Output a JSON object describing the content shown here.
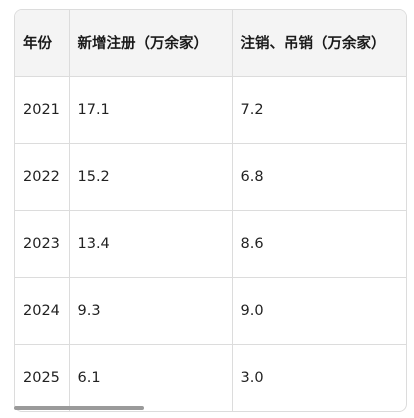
{
  "table": {
    "headers": [
      "年份",
      "新增注册（万余家）",
      "注销、吊销（万余家）"
    ],
    "rows": [
      [
        "2021",
        "17.1",
        "7.2"
      ],
      [
        "2022",
        "15.2",
        "6.8"
      ],
      [
        "2023",
        "13.4",
        "8.6"
      ],
      [
        "2024",
        "9.3",
        "9.0"
      ],
      [
        "2025",
        "6.1",
        "3.0"
      ]
    ]
  },
  "scrollbar": {
    "position": "bottom-left"
  }
}
